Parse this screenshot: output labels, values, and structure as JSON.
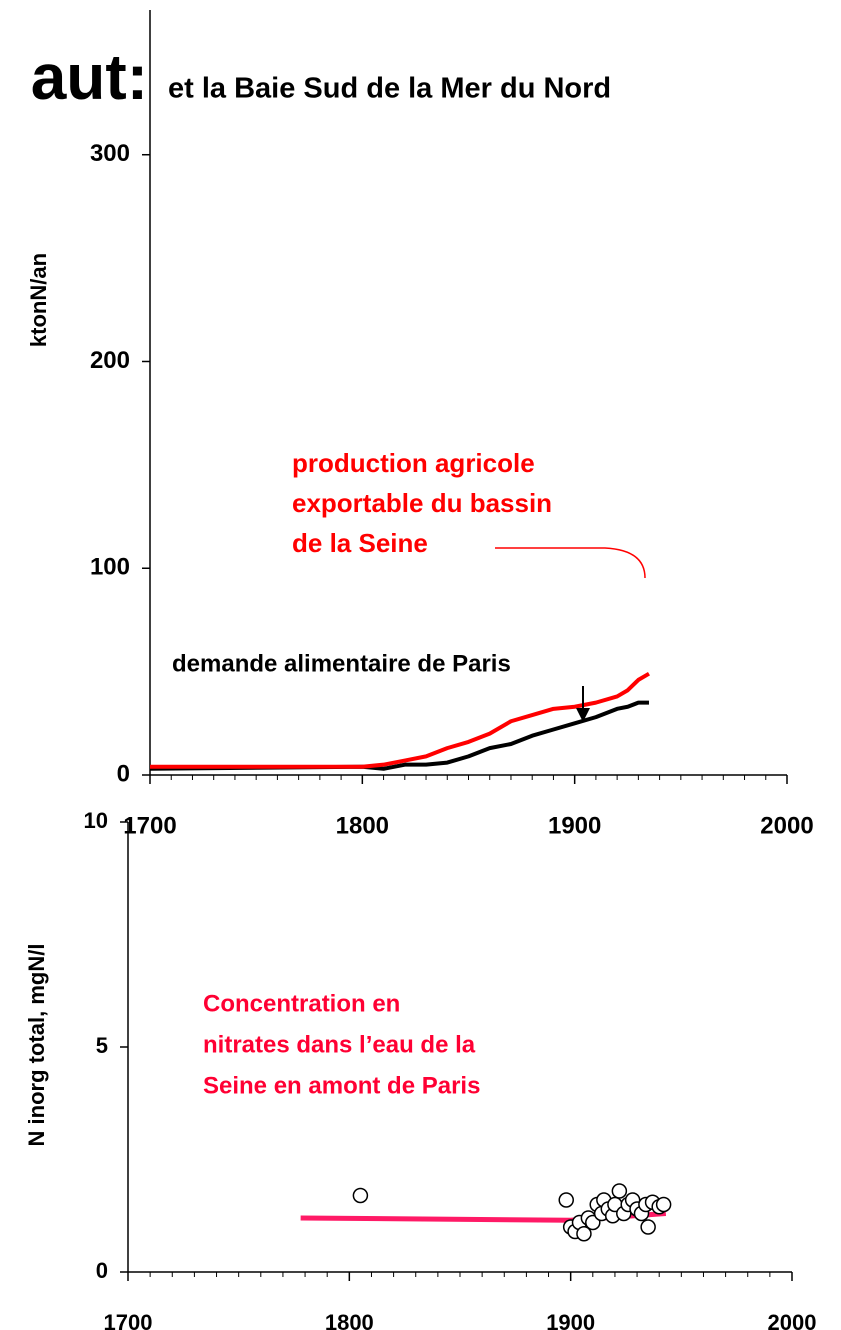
{
  "chart_data": [
    {
      "type": "line",
      "title": "aut:",
      "subtitle": "et la Baie Sud de la Mer du Nord",
      "ylabel": "ktonN/an",
      "xlim": [
        1700,
        2000
      ],
      "xticks": [
        1700,
        1800,
        1900,
        2000
      ],
      "xminorticks": [
        1710,
        1720,
        1730,
        1740,
        1750,
        1760,
        1770,
        1780,
        1790,
        1810,
        1820,
        1830,
        1840,
        1850,
        1860,
        1870,
        1880,
        1890,
        1910,
        1920,
        1930,
        1940,
        1950,
        1960,
        1970,
        1980,
        1990
      ],
      "ylim": [
        0,
        370
      ],
      "yticks": [
        0,
        100,
        200,
        300
      ],
      "x": [
        1700,
        1800,
        1810,
        1820,
        1830,
        1840,
        1850,
        1860,
        1870,
        1880,
        1890,
        1900,
        1910,
        1920,
        1925,
        1930,
        1935
      ],
      "series": [
        {
          "name": "production agricole exportable du bassin de la Seine",
          "color": "#ff0000",
          "values": [
            4,
            4,
            5,
            7,
            9,
            13,
            16,
            20,
            26,
            29,
            32,
            33,
            35,
            38,
            41,
            46,
            49
          ]
        },
        {
          "name": "demande alimentaire de Paris",
          "color": "#000000",
          "values": [
            3,
            4,
            3,
            5,
            5,
            6,
            9,
            13,
            15,
            19,
            22,
            25,
            28,
            32,
            33,
            35,
            35
          ]
        }
      ],
      "annotations": [
        {
          "lines": [
            "production agricole",
            "exportable du bassin",
            "de la Seine"
          ],
          "color": "#ff0000"
        },
        {
          "lines": [
            "demande alimentaire de Paris"
          ],
          "color": "#000000"
        }
      ]
    },
    {
      "type": "scatter",
      "ylabel": "N inorg total, mgN/l",
      "xlim": [
        1700,
        2000
      ],
      "xticks": [
        1700,
        1800,
        1900,
        2000
      ],
      "xminorticks": [
        1710,
        1720,
        1730,
        1740,
        1750,
        1760,
        1770,
        1780,
        1790,
        1810,
        1820,
        1830,
        1840,
        1850,
        1860,
        1870,
        1880,
        1890,
        1910,
        1920,
        1930,
        1940,
        1950,
        1960,
        1970,
        1980,
        1990
      ],
      "ylim": [
        0,
        10
      ],
      "yticks": [
        0,
        5,
        10
      ],
      "x": [
        1805,
        1898,
        1900,
        1902,
        1904,
        1906,
        1908,
        1910,
        1912,
        1914,
        1915,
        1917,
        1919,
        1920,
        1922,
        1924,
        1926,
        1928,
        1930,
        1932,
        1934,
        1935,
        1937,
        1940,
        1942
      ],
      "values": [
        1.7,
        1.6,
        1.0,
        0.9,
        1.1,
        0.85,
        1.2,
        1.1,
        1.5,
        1.3,
        1.6,
        1.4,
        1.25,
        1.5,
        1.8,
        1.3,
        1.5,
        1.6,
        1.4,
        1.3,
        1.5,
        1.0,
        1.55,
        1.45,
        1.5
      ],
      "color": "#000000",
      "trend": {
        "x": [
          1778,
          1900,
          1943
        ],
        "values": [
          1.2,
          1.15,
          1.3
        ],
        "color": "#ff1a66"
      },
      "annotations": [
        {
          "lines": [
            "Concentration en",
            "nitrates dans l’eau de la",
            "Seine en amont de Paris"
          ],
          "color": "#ff0033"
        }
      ]
    }
  ]
}
